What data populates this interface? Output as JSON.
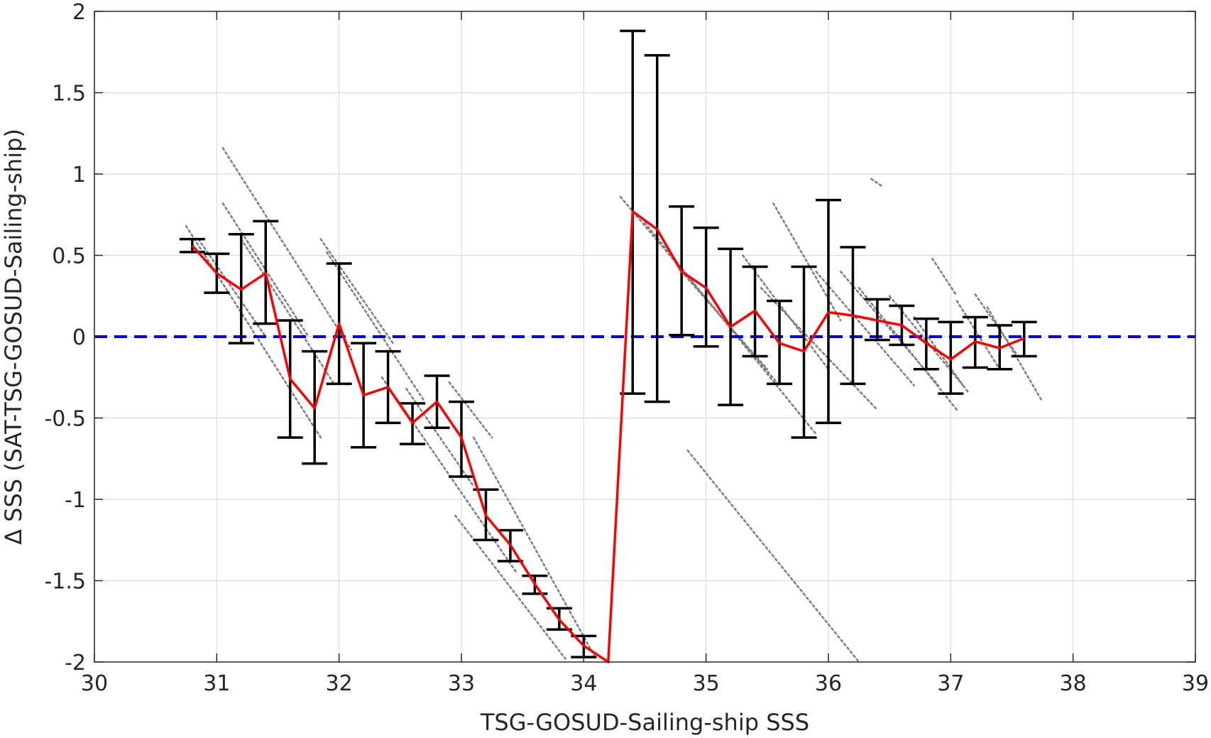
{
  "chart_data": {
    "type": "line",
    "xlabel": "TSG-GOSUD-Sailing-ship SSS",
    "ylabel": "Δ SSS (SAT-TSG-GOSUD-Sailing-ship)",
    "xlim": [
      30,
      39
    ],
    "ylim": [
      -2,
      2
    ],
    "xticks": [
      30,
      31,
      32,
      33,
      34,
      35,
      36,
      37,
      38,
      39
    ],
    "xtick_labels": [
      "30",
      "31",
      "32",
      "33",
      "34",
      "35",
      "36",
      "37",
      "38",
      "39"
    ],
    "yticks": [
      -2,
      -1.5,
      -1,
      -0.5,
      0,
      0.5,
      1,
      1.5,
      2
    ],
    "ytick_labels": [
      "-2",
      "-1.5",
      "-1",
      "-0.5",
      "0",
      "0.5",
      "1",
      "1.5",
      "2"
    ],
    "grid": true,
    "reference_line": {
      "y": 0,
      "color": "#0000e6",
      "style": "dashed"
    },
    "colors": {
      "mean_line": "#ff0000",
      "error_bars": "#000000",
      "scatter": "#808080",
      "reference": "#0000e6"
    },
    "mean_series": {
      "x": [
        30.8,
        31.0,
        31.2,
        31.4,
        31.6,
        31.8,
        32.0,
        32.2,
        32.4,
        32.6,
        32.8,
        33.0,
        33.2,
        33.4,
        33.6,
        33.8,
        34.0,
        34.2,
        34.4,
        34.6,
        34.8,
        35.0,
        35.2,
        35.4,
        35.6,
        35.8,
        36.0,
        36.2,
        36.4,
        36.6,
        36.8,
        37.0,
        37.2,
        37.4,
        37.6
      ],
      "y": [
        0.56,
        0.39,
        0.29,
        0.39,
        -0.26,
        -0.44,
        0.08,
        -0.36,
        -0.31,
        -0.53,
        -0.4,
        -0.62,
        -1.1,
        -1.28,
        -1.52,
        -1.74,
        -1.9,
        -2.0,
        0.77,
        0.66,
        0.4,
        0.3,
        0.06,
        0.16,
        -0.04,
        -0.09,
        0.15,
        0.13,
        0.1,
        0.07,
        -0.04,
        -0.14,
        -0.03,
        -0.07,
        -0.01
      ]
    },
    "error_bars": {
      "x": [
        30.8,
        31.0,
        31.2,
        31.4,
        31.6,
        31.8,
        32.0,
        32.2,
        32.4,
        32.6,
        32.8,
        33.0,
        33.2,
        33.4,
        33.6,
        33.8,
        34.0,
        34.4,
        34.6,
        34.8,
        35.0,
        35.2,
        35.4,
        35.6,
        35.8,
        36.0,
        36.2,
        36.4,
        36.6,
        36.8,
        37.0,
        37.2,
        37.4,
        37.6
      ],
      "lower": [
        0.52,
        0.27,
        -0.04,
        0.08,
        -0.62,
        -0.78,
        -0.29,
        -0.68,
        -0.53,
        -0.66,
        -0.56,
        -0.86,
        -1.25,
        -1.38,
        -1.58,
        -1.8,
        -1.97,
        -0.35,
        -0.4,
        0.01,
        -0.06,
        -0.42,
        -0.12,
        -0.29,
        -0.62,
        -0.53,
        -0.29,
        -0.02,
        -0.05,
        -0.2,
        -0.35,
        -0.19,
        -0.2,
        -0.12
      ],
      "upper": [
        0.6,
        0.51,
        0.63,
        0.71,
        0.1,
        -0.09,
        0.45,
        -0.04,
        -0.09,
        -0.41,
        -0.24,
        -0.4,
        -0.94,
        -1.19,
        -1.47,
        -1.67,
        -1.84,
        1.88,
        1.73,
        0.8,
        0.67,
        0.54,
        0.43,
        0.22,
        0.43,
        0.84,
        0.55,
        0.23,
        0.19,
        0.11,
        0.09,
        0.12,
        0.07,
        0.09
      ]
    },
    "scatter_segments": [
      {
        "x0": 30.75,
        "y0": 0.68,
        "x1": 31.85,
        "y1": -0.62
      },
      {
        "x0": 30.85,
        "y0": 0.6,
        "x1": 31.4,
        "y1": 0.0
      },
      {
        "x0": 31.05,
        "y0": 1.16,
        "x1": 32.1,
        "y1": -0.08
      },
      {
        "x0": 31.05,
        "y0": 0.82,
        "x1": 31.75,
        "y1": 0.0
      },
      {
        "x0": 31.2,
        "y0": 0.6,
        "x1": 31.95,
        "y1": -0.28
      },
      {
        "x0": 31.85,
        "y0": 0.6,
        "x1": 32.45,
        "y1": -0.05
      },
      {
        "x0": 31.9,
        "y0": 0.52,
        "x1": 32.7,
        "y1": -0.4
      },
      {
        "x0": 32.35,
        "y0": -0.25,
        "x1": 33.45,
        "y1": -1.45
      },
      {
        "x0": 32.55,
        "y0": -0.32,
        "x1": 33.1,
        "y1": -0.92
      },
      {
        "x0": 32.9,
        "y0": -0.28,
        "x1": 33.25,
        "y1": -0.62
      },
      {
        "x0": 32.95,
        "y0": -1.1,
        "x1": 33.85,
        "y1": -1.98
      },
      {
        "x0": 33.1,
        "y0": -0.62,
        "x1": 34.1,
        "y1": -1.98
      },
      {
        "x0": 34.3,
        "y0": 0.86,
        "x1": 35.6,
        "y1": -0.3
      },
      {
        "x0": 34.5,
        "y0": 0.7,
        "x1": 35.9,
        "y1": -0.6
      },
      {
        "x0": 34.8,
        "y0": 0.4,
        "x1": 35.5,
        "y1": -0.2
      },
      {
        "x0": 34.85,
        "y0": -0.7,
        "x1": 36.25,
        "y1": -2.0
      },
      {
        "x0": 35.3,
        "y0": 0.5,
        "x1": 36.0,
        "y1": -0.2
      },
      {
        "x0": 35.45,
        "y0": 0.3,
        "x1": 36.4,
        "y1": -0.45
      },
      {
        "x0": 35.55,
        "y0": 0.82,
        "x1": 36.1,
        "y1": 0.1
      },
      {
        "x0": 35.9,
        "y0": 0.4,
        "x1": 36.7,
        "y1": -0.3
      },
      {
        "x0": 36.1,
        "y0": 0.4,
        "x1": 36.9,
        "y1": -0.3
      },
      {
        "x0": 36.25,
        "y0": 0.3,
        "x1": 37.05,
        "y1": -0.45
      },
      {
        "x0": 36.35,
        "y0": 0.97,
        "x1": 36.45,
        "y1": 0.92
      },
      {
        "x0": 36.5,
        "y0": 0.25,
        "x1": 37.1,
        "y1": -0.3
      },
      {
        "x0": 36.7,
        "y0": 0.12,
        "x1": 37.15,
        "y1": -0.35
      },
      {
        "x0": 36.85,
        "y0": 0.48,
        "x1": 37.05,
        "y1": 0.25
      },
      {
        "x0": 37.05,
        "y0": 0.22,
        "x1": 37.4,
        "y1": -0.2
      },
      {
        "x0": 37.2,
        "y0": 0.26,
        "x1": 37.55,
        "y1": -0.12
      },
      {
        "x0": 37.3,
        "y0": 0.18,
        "x1": 37.75,
        "y1": -0.4
      }
    ]
  }
}
